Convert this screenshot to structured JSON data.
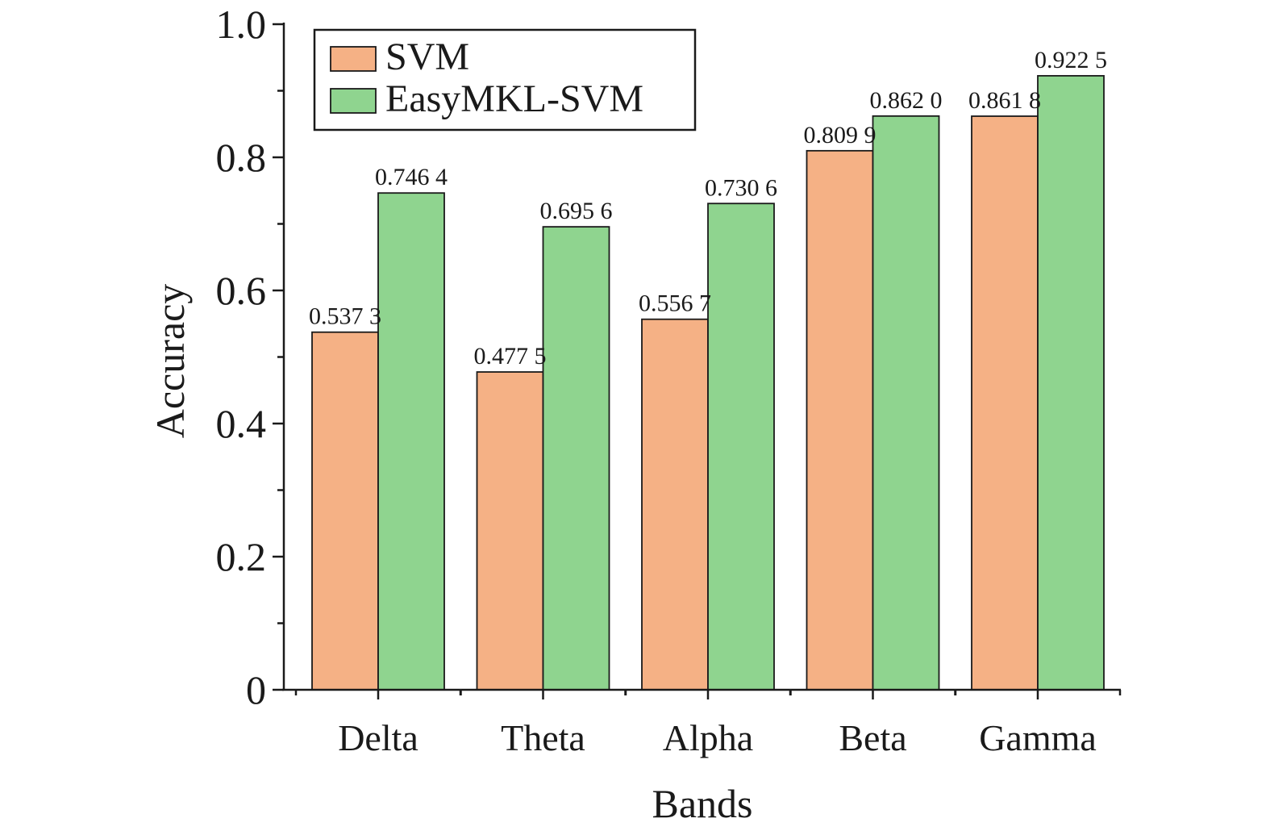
{
  "chart_data": {
    "type": "bar",
    "categories": [
      "Delta",
      "Theta",
      "Alpha",
      "Beta",
      "Gamma"
    ],
    "series": [
      {
        "name": "SVM",
        "color": "#f5b185",
        "values": [
          0.5373,
          0.4775,
          0.5567,
          0.8099,
          0.8618
        ],
        "labels": [
          "0.537 3",
          "0.477 5",
          "0.556 7",
          "0.809 9",
          "0.861 8"
        ]
      },
      {
        "name": "EasyMKL-SVM",
        "color": "#8fd48f",
        "values": [
          0.7464,
          0.6956,
          0.7306,
          0.862,
          0.9225
        ],
        "labels": [
          "0.746 4",
          "0.695 6",
          "0.730 6",
          "0.862 0",
          "0.922 5"
        ]
      }
    ],
    "xlabel": "Bands",
    "ylabel": "Accuracy",
    "ylim": [
      0,
      1.0
    ],
    "yticks": [
      0,
      0.2,
      0.4,
      0.6,
      0.8,
      1.0
    ],
    "ytick_labels": [
      "0",
      "0.2",
      "0.4",
      "0.6",
      "0.8",
      "1.0"
    ],
    "legend_position": "top-left",
    "grid": false
  }
}
